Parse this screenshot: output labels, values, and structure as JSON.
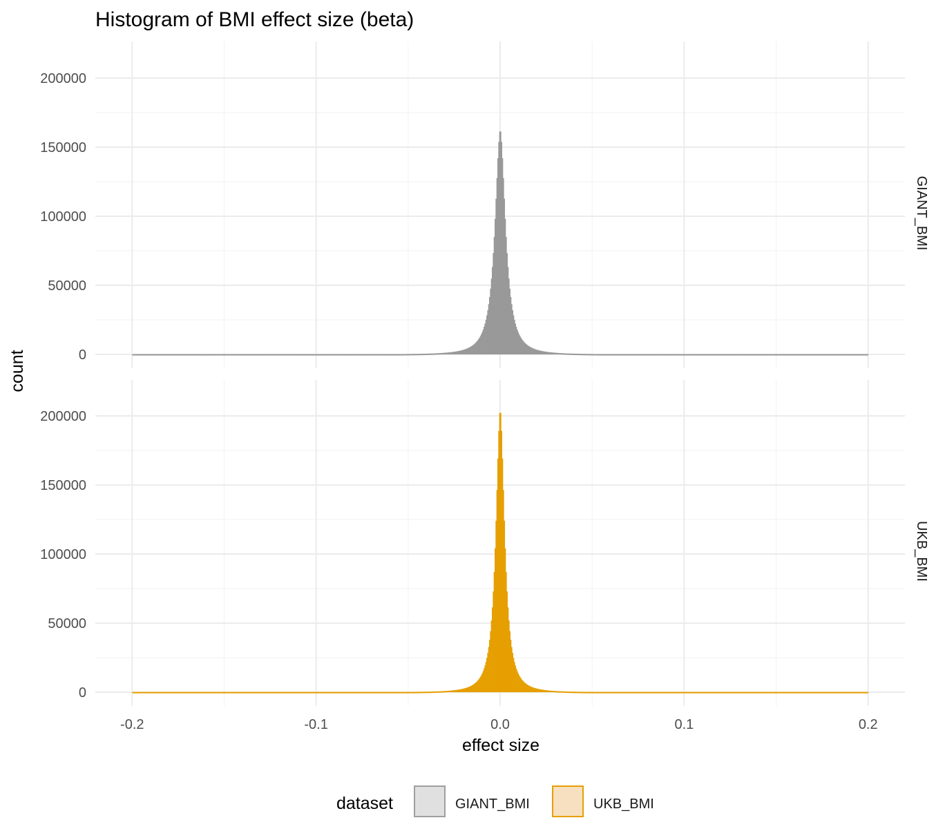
{
  "chart_data": {
    "type": "bar",
    "title": "Histogram of BMI effect size (beta)",
    "xlabel": "effect size",
    "ylabel": "count",
    "xlim": [
      -0.22,
      0.22
    ],
    "x_ticks": [
      -0.2,
      -0.1,
      0.0,
      0.1,
      0.2
    ],
    "x_tick_labels": [
      "-0.2",
      "-0.1",
      "0.0",
      "0.1",
      "0.2"
    ],
    "ylim": [
      0,
      210000
    ],
    "y_ticks": [
      0,
      50000,
      100000,
      150000,
      200000
    ],
    "y_tick_labels": [
      "0",
      "50000",
      "100000",
      "150000",
      "200000"
    ],
    "grid": true,
    "legend": {
      "title": "dataset",
      "position": "bottom",
      "entries": [
        {
          "label": "GIANT_BMI",
          "fill": "#e0e0e0",
          "stroke": "#9e9e9e"
        },
        {
          "label": "UKB_BMI",
          "fill": "#f7e0bf",
          "stroke": "#e69f00"
        }
      ]
    },
    "panels": [
      {
        "strip_label": "GIANT_BMI",
        "fill": "#999999",
        "bin_width": 0.0005,
        "x_range": [
          -0.2,
          0.2
        ],
        "approx_shape": {
          "peak_x": 0.0,
          "peak_count": 163000,
          "half_width_at_half_max": 0.0034,
          "tail_floor_count": 200
        }
      },
      {
        "strip_label": "UKB_BMI",
        "fill": "#e69f00",
        "bin_width": 0.0005,
        "x_range": [
          -0.2,
          0.2
        ],
        "approx_shape": {
          "peak_x": 0.0,
          "peak_count": 205000,
          "half_width_at_half_max": 0.0028,
          "tail_floor_count": 200
        }
      }
    ]
  }
}
